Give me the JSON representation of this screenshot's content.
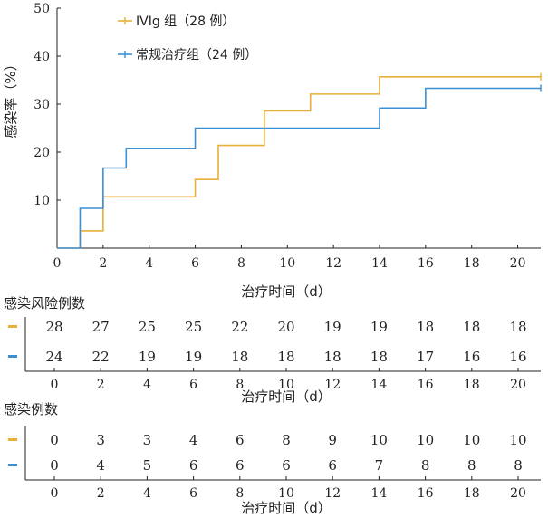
{
  "chart_data": {
    "type": "line",
    "step": true,
    "xlabel": "治疗时间（d）",
    "ylabel": "感染率（%）",
    "xlim": [
      0,
      21
    ],
    "ylim": [
      0,
      50
    ],
    "xticks": [
      0,
      2,
      4,
      6,
      8,
      10,
      12,
      14,
      16,
      18,
      20
    ],
    "yticks": [
      0,
      10,
      20,
      30,
      40,
      50
    ],
    "ytick_labels": [
      "",
      "10",
      "20",
      "30",
      "40",
      "50"
    ],
    "legend_position": "top-left",
    "series": [
      {
        "name": "IVIg 组（28 例）",
        "color": "#E8B03A",
        "steps": [
          [
            0,
            0
          ],
          [
            1,
            3.6
          ],
          [
            2,
            10.7
          ],
          [
            6,
            14.3
          ],
          [
            7,
            21.4
          ],
          [
            9,
            28.6
          ],
          [
            11,
            32.1
          ],
          [
            14,
            35.7
          ],
          [
            21,
            35.7
          ]
        ]
      },
      {
        "name": "常规治疗组（24 例）",
        "color": "#3B8FD4",
        "steps": [
          [
            0,
            0
          ],
          [
            1,
            8.3
          ],
          [
            2,
            16.7
          ],
          [
            3,
            20.8
          ],
          [
            6,
            25.0
          ],
          [
            14,
            29.2
          ],
          [
            16,
            33.3
          ],
          [
            21,
            33.3
          ]
        ]
      }
    ]
  },
  "risk_table": {
    "title": "感染风险例数",
    "xlabel": "治疗时间（d）",
    "ticks": [
      "0",
      "2",
      "4",
      "6",
      "8",
      "10",
      "12",
      "14",
      "16",
      "18",
      "20"
    ],
    "rows": [
      {
        "color": "#E8B03A",
        "values": [
          "28",
          "27",
          "25",
          "25",
          "22",
          "20",
          "19",
          "19",
          "18",
          "18",
          "18"
        ]
      },
      {
        "color": "#3B8FD4",
        "values": [
          "24",
          "22",
          "19",
          "19",
          "18",
          "18",
          "18",
          "18",
          "17",
          "16",
          "16"
        ]
      }
    ]
  },
  "events_table": {
    "title": "感染例数",
    "xlabel": "治疗时间（d）",
    "ticks": [
      "0",
      "2",
      "4",
      "6",
      "8",
      "10",
      "12",
      "14",
      "16",
      "18",
      "20"
    ],
    "rows": [
      {
        "color": "#E8B03A",
        "values": [
          "0",
          "3",
          "3",
          "4",
          "6",
          "8",
          "9",
          "10",
          "10",
          "10",
          "10"
        ]
      },
      {
        "color": "#3B8FD4",
        "values": [
          "0",
          "4",
          "5",
          "6",
          "6",
          "6",
          "6",
          "7",
          "8",
          "8",
          "8"
        ]
      }
    ]
  }
}
